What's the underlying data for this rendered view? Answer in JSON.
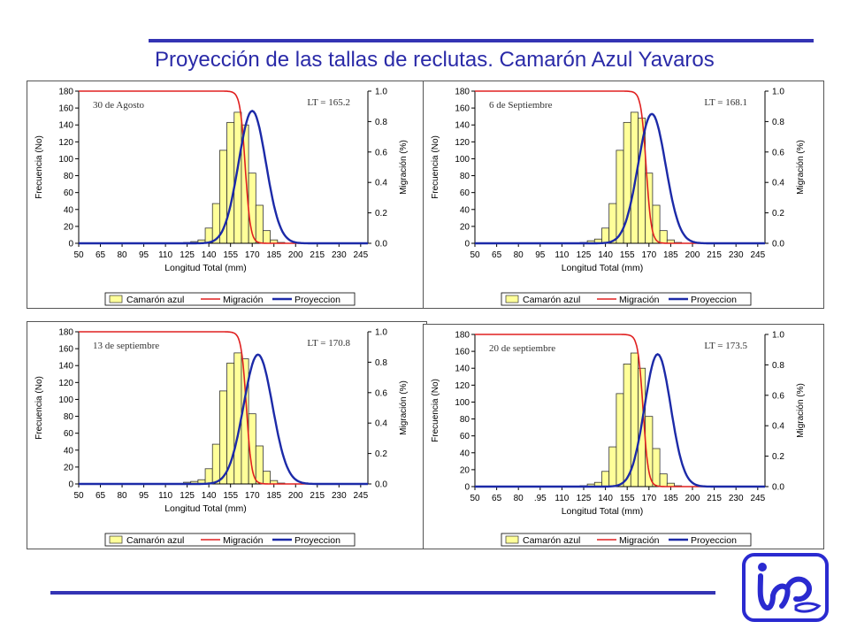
{
  "page": {
    "title": "Proyección de las tallas de reclutas. Camarón Azul Yavaros",
    "logo_icon": "inp-logo-icon"
  },
  "colors": {
    "bar": "#ffff99",
    "migracion": "#e02020",
    "proyeccion": "#1c2aa8",
    "accent": "#3434b4"
  },
  "chart_data": [
    {
      "type": "bar",
      "date_label": "30 de Agosto",
      "lt_label": "LT = 165.2",
      "lt": 165.2,
      "xlabel": "Longitud Total (mm)",
      "ylabel": "Frecuencia (No)",
      "y2label": "Migración (%)",
      "xticks": [
        "50",
        "65",
        "80",
        "95",
        "110",
        "125",
        "140",
        "155",
        "170",
        "185",
        "200",
        "215",
        "230",
        "245"
      ],
      "yticks": [
        "0",
        "20",
        "40",
        "60",
        "80",
        "100",
        "120",
        "140",
        "160",
        "180"
      ],
      "y2ticks": [
        "0.0",
        "0.2",
        "0.4",
        "0.6",
        "0.8",
        "1.0"
      ],
      "xlim": [
        50,
        250
      ],
      "ylim": [
        0,
        180
      ],
      "y2lim": [
        0,
        1
      ],
      "legend": [
        "Camarón azul",
        "Migración",
        "Proyeccion"
      ],
      "bars": {
        "x": [
          125,
          130,
          135,
          140,
          145,
          150,
          155,
          160,
          165,
          170,
          175,
          180,
          185,
          190
        ],
        "values": [
          1,
          2,
          4,
          18,
          47,
          110,
          143,
          155,
          140,
          83,
          45,
          15,
          4,
          1
        ]
      },
      "migracion": {
        "midpoint": 165.2,
        "spread": 1.8
      },
      "proyeccion": {
        "mean": 170,
        "sd": 9.5,
        "peak": 0.87
      }
    },
    {
      "type": "bar",
      "date_label": "6 de Septiembre",
      "lt_label": "LT = 168.1",
      "lt": 168.1,
      "xlabel": "Longitud Total (mm)",
      "ylabel": "Frecuencia (No)",
      "y2label": "Migración (%)",
      "xticks": [
        "50",
        "65",
        "80",
        "95",
        "110",
        "125",
        "140",
        "155",
        "170",
        "185",
        "200",
        "215",
        "230",
        "245"
      ],
      "yticks": [
        "0",
        "20",
        "40",
        "60",
        "80",
        "100",
        "120",
        "140",
        "160",
        "180"
      ],
      "y2ticks": [
        "0.0",
        "0.2",
        "0.4",
        "0.6",
        "0.8",
        "1.0"
      ],
      "xlim": [
        50,
        250
      ],
      "ylim": [
        0,
        180
      ],
      "y2lim": [
        0,
        1
      ],
      "legend": [
        "Camarón azul",
        "Migración",
        "Proyeccion"
      ],
      "bars": {
        "x": [
          125,
          130,
          135,
          140,
          145,
          150,
          155,
          160,
          165,
          170,
          175,
          180,
          185,
          190
        ],
        "values": [
          1,
          3,
          5,
          18,
          47,
          110,
          143,
          155,
          148,
          83,
          45,
          15,
          4,
          1
        ]
      },
      "migracion": {
        "midpoint": 168.1,
        "spread": 1.8
      },
      "proyeccion": {
        "mean": 172,
        "sd": 9.5,
        "peak": 0.85
      }
    },
    {
      "type": "bar",
      "date_label": "13 de septiembre",
      "lt_label": "LT = 170.8",
      "lt": 170.8,
      "xlabel": "Longitud Total (mm)",
      "ylabel": "Frecuencia (No)",
      "y2label": "Migración (%)",
      "xticks": [
        "50",
        "65",
        "80",
        "95",
        "110",
        "125",
        "140",
        "155",
        "170",
        "185",
        "200",
        "215",
        "230",
        "245"
      ],
      "yticks": [
        "0",
        "20",
        "40",
        "60",
        "80",
        "100",
        "120",
        "140",
        "160",
        "180"
      ],
      "y2ticks": [
        "0.0",
        "0.2",
        "0.4",
        "0.6",
        "0.8",
        "1.0"
      ],
      "xlim": [
        50,
        250
      ],
      "ylim": [
        0,
        180
      ],
      "y2lim": [
        0,
        1
      ],
      "legend": [
        "Camarón azul",
        "Migración",
        "Proyeccion"
      ],
      "bars": {
        "x": [
          125,
          130,
          135,
          140,
          145,
          150,
          155,
          160,
          165,
          170,
          175,
          180,
          185,
          190
        ],
        "values": [
          2,
          3,
          5,
          18,
          47,
          110,
          143,
          155,
          148,
          83,
          45,
          15,
          4,
          1
        ]
      },
      "migracion": {
        "midpoint": 166,
        "spread": 1.8
      },
      "proyeccion": {
        "mean": 174,
        "sd": 10,
        "peak": 0.85
      }
    },
    {
      "type": "bar",
      "date_label": "20 de septiembre",
      "lt_label": "LT = 173.5",
      "lt": 173.5,
      "xlabel": "Longitud Total (mm)",
      "ylabel": "Frecuencia (No)",
      "y2label": "Migración (%)",
      "xticks": [
        "50",
        "65",
        "80",
        ".95",
        "110",
        "125",
        "140",
        "155",
        "170",
        "185",
        "200",
        "215",
        "230",
        "245"
      ],
      "yticks": [
        "0",
        "20",
        "40",
        "60",
        "80",
        "100",
        "120",
        "140",
        "160",
        "180"
      ],
      "y2ticks": [
        "0.0",
        "0.2",
        "0.4",
        "0.6",
        "0.8",
        "1.0"
      ],
      "xlim": [
        50,
        250
      ],
      "ylim": [
        0,
        180
      ],
      "y2lim": [
        0,
        1
      ],
      "legend": [
        "Camarón azul",
        "Migración",
        "Proyeccion"
      ],
      "bars": {
        "x": [
          125,
          130,
          135,
          140,
          145,
          150,
          155,
          160,
          165,
          170,
          175,
          180,
          185,
          190
        ],
        "values": [
          1,
          3,
          5,
          18,
          47,
          110,
          145,
          158,
          140,
          83,
          45,
          15,
          4,
          1
        ]
      },
      "migracion": {
        "midpoint": 166,
        "spread": 1.8
      },
      "proyeccion": {
        "mean": 176,
        "sd": 9,
        "peak": 0.87
      }
    }
  ]
}
